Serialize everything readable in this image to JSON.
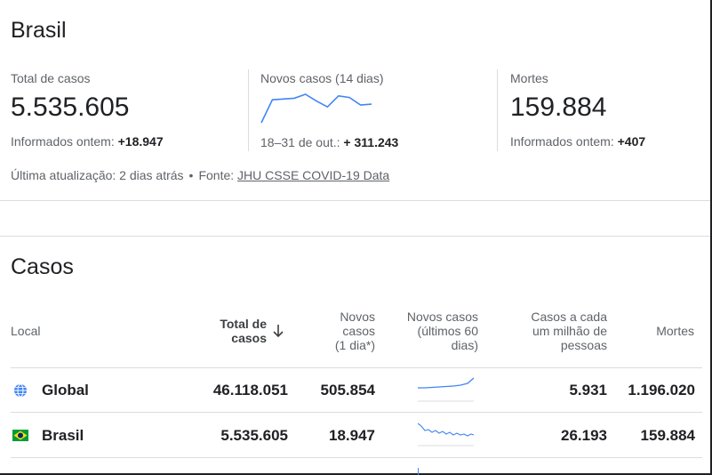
{
  "country": "Brasil",
  "stats": {
    "total": {
      "label": "Total de casos",
      "value": "5.535.605",
      "sub_prefix": "Informados ontem: ",
      "sub_value": "+18.947"
    },
    "new": {
      "label": "Novos casos (14 dias)",
      "sub_prefix": "18–31 de out.: ",
      "sub_value": "+ 311.243",
      "trend_values": [
        0,
        58,
        60,
        62,
        72,
        55,
        40,
        68,
        64,
        45,
        47
      ]
    },
    "deaths": {
      "label": "Mortes",
      "value": "159.884",
      "sub_prefix": "Informados ontem: ",
      "sub_value": "+407"
    }
  },
  "update": {
    "text": "Última atualização: 2 dias atrás",
    "separator": "•",
    "source_prefix": "Fonte: ",
    "source_link": "JHU CSSE COVID-19 Data"
  },
  "cases": {
    "title": "Casos",
    "headers": {
      "location": "Local",
      "total_line1": "Total de",
      "total_line2": "casos",
      "sort_icon": "arrow-down-icon",
      "new_line1": "Novos",
      "new_line2": "casos",
      "new_line3": "(1 dia*)",
      "trend_line1": "Novos casos",
      "trend_line2": "(últimos 60",
      "trend_line3": "dias)",
      "per_million_line1": "Casos a cada",
      "per_million_line2": "um milhão de",
      "per_million_line3": "pessoas",
      "deaths": "Mortes"
    },
    "rows": [
      {
        "location": "Global",
        "icon": "globe-icon",
        "total": "46.118.051",
        "new": "505.854",
        "per_million": "5.931",
        "deaths": "1.196.020",
        "trend_color": "#4285f4"
      },
      {
        "location": "Brasil",
        "icon": "brazil-flag-icon",
        "total": "5.535.605",
        "new": "18.947",
        "per_million": "26.193",
        "deaths": "159.884",
        "trend_color": "#4285f4"
      }
    ]
  },
  "colors": {
    "accent": "#4285f4",
    "text": "#202124",
    "muted": "#5f6368",
    "divider": "#dadce0"
  }
}
